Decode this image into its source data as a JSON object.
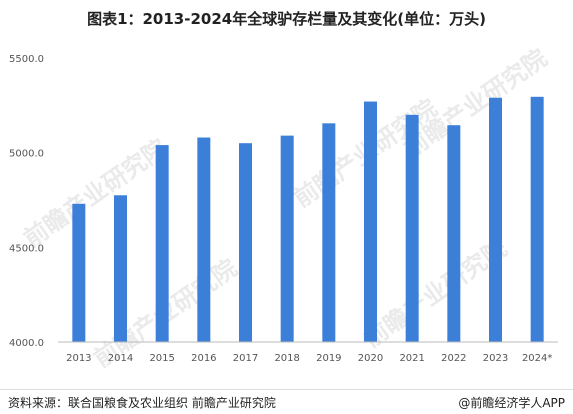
{
  "title": "图表1：2013-2024年全球驴存栏量及其变化(单位：万头)",
  "source": "资料来源：联合国粮食及农业组织 前瞻产业研究院",
  "brand": "@前瞻经济学人APP",
  "watermark": "前瞻产业研究院",
  "colors": {
    "bar": "#3b7fd9",
    "axis_text": "#555555",
    "axis_line": "#bbbbbb"
  },
  "chart_data": {
    "type": "bar",
    "title": "图表1：2013-2024年全球驴存栏量及其变化(单位：万头)",
    "categories": [
      "2013",
      "2014",
      "2015",
      "2016",
      "2017",
      "2018",
      "2019",
      "2020",
      "2021",
      "2022",
      "2023",
      "2024*"
    ],
    "values": [
      4730,
      4775,
      5040,
      5080,
      5050,
      5090,
      5155,
      5270,
      5200,
      5145,
      5290,
      5295
    ],
    "ylim": [
      4000,
      5500
    ],
    "yticks": [
      "4000.0",
      "4500.0",
      "5000.0",
      "5500.0"
    ],
    "grid": false,
    "xlabel": "",
    "ylabel": ""
  }
}
